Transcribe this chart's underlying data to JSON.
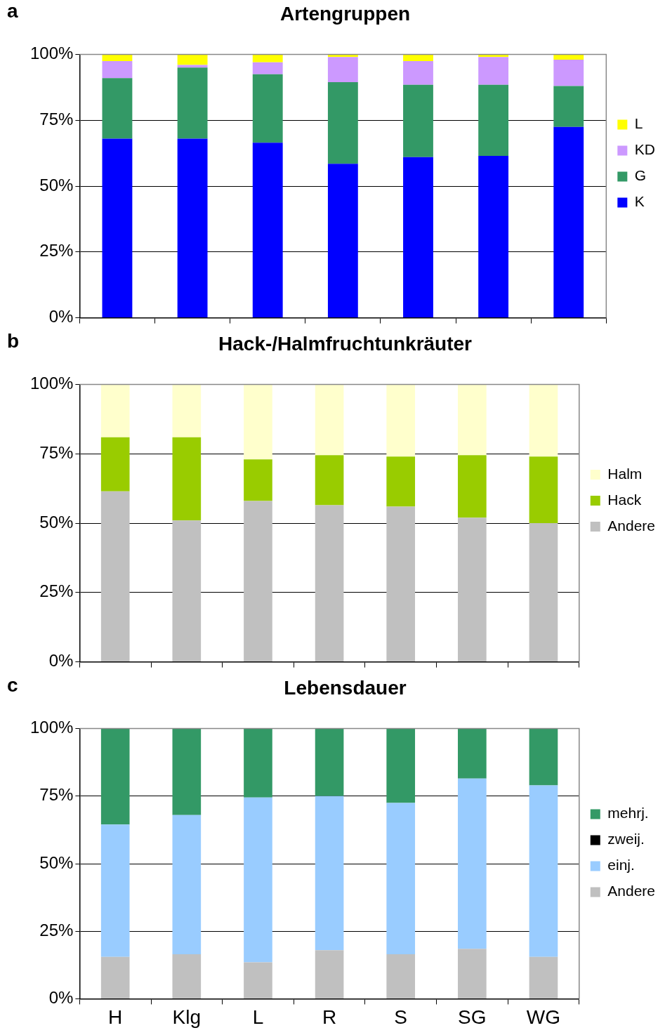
{
  "chart_data": [
    {
      "type": "bar",
      "stacked": true,
      "title": "Artengruppen",
      "annotations": [
        "a"
      ],
      "categories": [
        null,
        null,
        null,
        null,
        null,
        null,
        null
      ],
      "ylim": [
        0,
        100
      ],
      "yticks": [
        {
          "value": 0,
          "label": "0%"
        },
        {
          "value": 25,
          "label": "25%"
        },
        {
          "value": 50,
          "label": "50%"
        },
        {
          "value": 75,
          "label": "75%"
        },
        {
          "value": 100,
          "label": "100%"
        }
      ],
      "grid": "y",
      "legend": "right",
      "tick_labels": "y",
      "series": [
        {
          "name": "K",
          "color": "#0000ff",
          "values": [
            68,
            68,
            66.5,
            58.5,
            61,
            61.5,
            72.5
          ]
        },
        {
          "name": "G",
          "color": "#339966",
          "values": [
            23,
            27,
            26,
            31,
            27.5,
            27,
            15.5
          ]
        },
        {
          "name": "KD",
          "color": "#cc99ff",
          "values": [
            6.5,
            1,
            4.5,
            9.5,
            9,
            10.5,
            10
          ]
        },
        {
          "name": "L",
          "color": "#ffff00",
          "values": [
            2.5,
            4,
            3,
            1,
            2.5,
            1,
            2
          ]
        }
      ]
    },
    {
      "type": "bar",
      "stacked": true,
      "title": "Hack-/Halmfruchtunkräuter",
      "annotations": [
        "b"
      ],
      "categories": [
        null,
        null,
        null,
        null,
        null,
        null,
        null
      ],
      "ylim": [
        0,
        100
      ],
      "yticks": [
        {
          "value": 0,
          "label": "0%"
        },
        {
          "value": 25,
          "label": "25%"
        },
        {
          "value": 50,
          "label": "50%"
        },
        {
          "value": 75,
          "label": "75%"
        },
        {
          "value": 100,
          "label": "100%"
        }
      ],
      "grid": "y",
      "legend": "right",
      "tick_labels": "y",
      "series": [
        {
          "name": "Andere",
          "color": "#c0c0c0",
          "values": [
            61.5,
            51,
            58,
            56.5,
            56,
            52,
            50
          ]
        },
        {
          "name": "Hack",
          "color": "#99cc00",
          "values": [
            19.5,
            30,
            15,
            18,
            18,
            22.5,
            24
          ]
        },
        {
          "name": "Halm",
          "color": "#ffffcc",
          "values": [
            19,
            19,
            27,
            25.5,
            26,
            25.5,
            26
          ]
        }
      ]
    },
    {
      "type": "bar",
      "stacked": true,
      "title": "Lebensdauer",
      "annotations": [
        "c"
      ],
      "categories": [
        "H",
        "Klg",
        "L",
        "R",
        "S",
        "SG",
        "WG"
      ],
      "ylim": [
        0,
        100
      ],
      "yticks": [
        {
          "value": 0,
          "label": "0%"
        },
        {
          "value": 25,
          "label": "25%"
        },
        {
          "value": 50,
          "label": "50%"
        },
        {
          "value": 75,
          "label": "75%"
        },
        {
          "value": 100,
          "label": "100%"
        }
      ],
      "grid": "y",
      "legend": "right",
      "series": [
        {
          "name": "Andere",
          "color": "#c0c0c0",
          "values": [
            15.5,
            16.5,
            13.5,
            18,
            16.5,
            18.5,
            15.5
          ]
        },
        {
          "name": "einj.",
          "color": "#99ccff",
          "values": [
            49,
            51.5,
            61,
            57,
            56,
            63,
            63.5
          ]
        },
        {
          "name": "zweij.",
          "color": "#000000",
          "values": [
            0,
            0,
            0,
            0,
            0,
            0,
            0
          ]
        },
        {
          "name": "mehrj.",
          "color": "#339966",
          "values": [
            35.5,
            32,
            25.5,
            25,
            27.5,
            18.5,
            21
          ]
        }
      ]
    }
  ]
}
